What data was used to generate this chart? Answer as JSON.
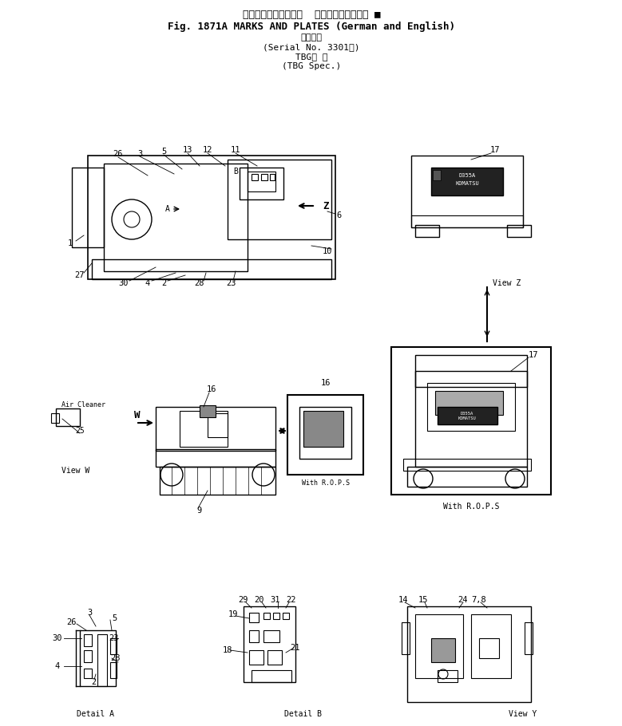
{
  "title_line1": "マークおよびプレート  ドイツ語および英語 ■",
  "title_line2": "Fig. 1871A MARKS AND PLATES (German and English)",
  "title_line3": "適用号機",
  "title_line4": "(Serial No. 3301～)",
  "title_line5": "TBG仕 様",
  "title_line6": "(TBG Spec.)",
  "bg_color": "#ffffff",
  "line_color": "#000000",
  "text_color": "#000000",
  "fig_width": 7.79,
  "fig_height": 9.1
}
